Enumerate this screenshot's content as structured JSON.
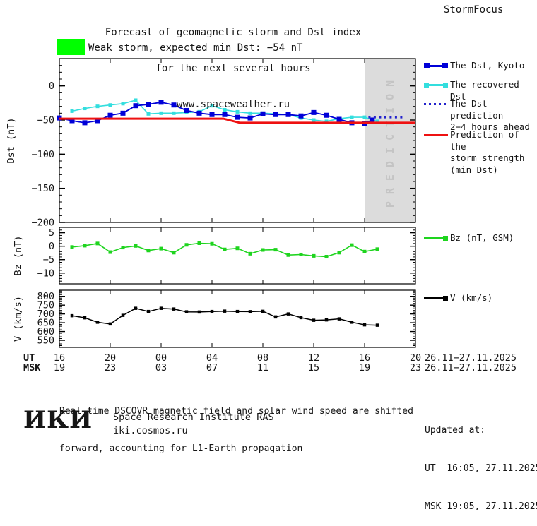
{
  "header": {
    "title_line1": "Forecast of geomagnetic storm and Dst index",
    "title_line2": "for the next several hours",
    "title_line3": "www.spaceweather.ru",
    "brand": "StormFocus"
  },
  "alert": {
    "label": "Weak storm, expected min Dst: −54 nT"
  },
  "legend": {
    "kyoto": "The Dst, Kyoto",
    "recovered": "The recovered Dst",
    "prediction_line1": "The Dst prediction",
    "prediction_line2": "2−4 hours ahead",
    "strength_line1": "Prediction of the",
    "strength_line2": "storm strength",
    "strength_line3": "(min Dst)",
    "bz": "Bz (nT, GSM)",
    "v": "V (km/s)"
  },
  "prediction_zone_label": "PREDICTION",
  "xaxis": {
    "ut_label": "UT",
    "msk_label": "MSK",
    "tick_hours": [
      0,
      4,
      8,
      12,
      16,
      20,
      24,
      28
    ],
    "ut_ticks": [
      "16",
      "20",
      "00",
      "04",
      "08",
      "12",
      "16",
      "20"
    ],
    "msk_ticks": [
      "19",
      "23",
      "03",
      "07",
      "11",
      "15",
      "19",
      "23"
    ],
    "date_range_ut": "26.11−27.11.2025",
    "date_range_msk": "26.11−27.11.2025"
  },
  "footer": {
    "note_line1": "Real-time DSCOVR magnetic field and solar wind speed are shifted",
    "note_line2": "forward, accounting for L1-Earth propagation",
    "logo": "ИКИ",
    "institute": "Space Research Institute RAS",
    "site": "iki.cosmos.ru",
    "updated_label": "Updated at:",
    "updated_ut": "UT  16:05, 27.11.2025",
    "updated_msk": "MSK 19:05, 27.11.2025"
  },
  "colors": {
    "kyoto": "#0000d8",
    "recovered": "#33dede",
    "prediction": "#2222cc",
    "strength": "#ee1111",
    "bz": "#1ed41e",
    "v": "#000000",
    "alert": "#00ff00",
    "zone": "#dcdcdc",
    "zone_text": "#c4c4c4"
  },
  "chart_data": [
    {
      "type": "line",
      "key": "dst",
      "ylabel": "Dst (nT)",
      "xlim": [
        0,
        28
      ],
      "x_major": 4,
      "ylim": [
        -200,
        40
      ],
      "yticks": [
        0,
        -50,
        -100,
        -150,
        -200
      ],
      "y_minor": 10,
      "prediction_zone": [
        24,
        28
      ],
      "series": [
        {
          "key": "recovered",
          "name": "The recovered Dst",
          "color": "#33dede",
          "width": 1.6,
          "marker": true,
          "marker_size": 5,
          "x": [
            1,
            2,
            3,
            4,
            5,
            6,
            7,
            8,
            9,
            10,
            11,
            12,
            13,
            14,
            15,
            16,
            17,
            18,
            19,
            20,
            21,
            22,
            23,
            24,
            25
          ],
          "y": [
            -37,
            -33,
            -30,
            -28,
            -26,
            -21,
            -41,
            -40,
            -40,
            -39,
            -38,
            -29,
            -35,
            -38,
            -40,
            -40,
            -41,
            -42,
            -47,
            -50,
            -52,
            -48,
            -46,
            -46,
            -52
          ]
        },
        {
          "key": "kyoto",
          "name": "The Dst, Kyoto",
          "color": "#0000d8",
          "width": 1.8,
          "marker": true,
          "marker_size": 7,
          "x": [
            0,
            1,
            2,
            3,
            4,
            5,
            6,
            7,
            8,
            9,
            10,
            11,
            12,
            13,
            14,
            15,
            16,
            17,
            18,
            19,
            20,
            21,
            22,
            23,
            24,
            24.6
          ],
          "y": [
            -47,
            -51,
            -54,
            -51,
            -43,
            -40,
            -29,
            -27,
            -24,
            -28,
            -36,
            -40,
            -42,
            -42,
            -46,
            -47,
            -41,
            -42,
            -42,
            -44,
            -39,
            -43,
            -49,
            -54,
            -55,
            -50
          ]
        },
        {
          "key": "dst-prediction",
          "name": "The Dst prediction 2−4 hours ahead",
          "color": "#2222cc",
          "width": 3,
          "dotted": true,
          "x": [
            24.3,
            27.2
          ],
          "y": [
            -46,
            -46
          ]
        },
        {
          "key": "storm-strength",
          "name": "Prediction of the storm strength (min Dst)",
          "color": "#ee1111",
          "width": 3,
          "x": [
            0,
            12.9,
            14.2,
            28
          ],
          "y": [
            -48,
            -48,
            -54,
            -54
          ]
        }
      ]
    },
    {
      "type": "line",
      "key": "bz",
      "ylabel": "Bz (nT)",
      "xlim": [
        0,
        28
      ],
      "x_major": 4,
      "ylim": [
        -14,
        7
      ],
      "yticks": [
        5,
        0,
        -5,
        -10
      ],
      "y_minor": 1,
      "series": [
        {
          "key": "bz",
          "name": "Bz (nT, GSM)",
          "color": "#1ed41e",
          "width": 1.6,
          "marker": true,
          "marker_size": 5,
          "x": [
            1,
            2,
            3,
            4,
            5,
            6,
            7,
            8,
            9,
            10,
            11,
            12,
            13,
            14,
            15,
            16,
            17,
            18,
            19,
            20,
            21,
            22,
            23,
            24,
            25
          ],
          "y": [
            -0.3,
            0.2,
            1.0,
            -2.2,
            -0.5,
            0.1,
            -1.6,
            -0.9,
            -2.4,
            0.5,
            1.1,
            0.9,
            -1.2,
            -0.8,
            -2.8,
            -1.4,
            -1.3,
            -3.3,
            -3.1,
            -3.6,
            -3.9,
            -2.4,
            0.4,
            -2.0,
            -1.1
          ]
        }
      ]
    },
    {
      "type": "line",
      "key": "v",
      "ylabel": "V (km/s)",
      "xlim": [
        0,
        28
      ],
      "x_major": 4,
      "ylim": [
        510,
        835
      ],
      "yticks": [
        800,
        750,
        700,
        650,
        600,
        550
      ],
      "y_minor": 10,
      "series": [
        {
          "key": "v",
          "name": "V (km/s)",
          "color": "#000000",
          "width": 1.5,
          "marker": true,
          "marker_size": 4.5,
          "x": [
            1,
            2,
            3,
            4,
            5,
            6,
            7,
            8,
            9,
            10,
            11,
            12,
            13,
            14,
            15,
            16,
            17,
            18,
            19,
            20,
            21,
            22,
            23,
            24,
            25
          ],
          "y": [
            690,
            678,
            653,
            643,
            692,
            732,
            714,
            732,
            728,
            712,
            711,
            714,
            716,
            714,
            713,
            715,
            683,
            700,
            679,
            664,
            666,
            672,
            653,
            638,
            636
          ]
        }
      ]
    }
  ]
}
